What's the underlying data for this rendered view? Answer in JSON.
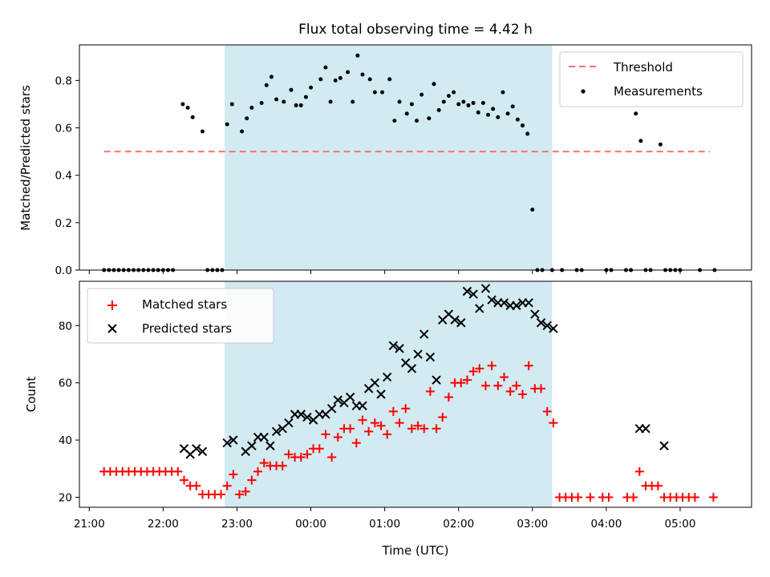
{
  "chart_data": [
    {
      "type": "scatter",
      "title": "Flux total observing time = 4.42 h",
      "xlabel": "",
      "ylabel": "Matched/Predicted stars",
      "ylim": [
        0,
        0.95
      ],
      "xlim": [
        "20:52",
        "05:58"
      ],
      "yticks": [
        0.0,
        0.2,
        0.4,
        0.6,
        0.8
      ],
      "ytick_labels": [
        "0.0",
        "0.2",
        "0.4",
        "0.6",
        "0.8"
      ],
      "grid": false,
      "legend_position": "top-right",
      "shaded_interval": {
        "start": "22:50",
        "end": "03:16",
        "color": "#add8e6"
      },
      "threshold": {
        "name": "Threshold",
        "value": 0.5,
        "x_start": "21:12",
        "x_end": "05:24",
        "color": "#ff7070",
        "style": "dashed"
      },
      "series": [
        {
          "name": "Measurements",
          "marker": "dot",
          "color": "#000000",
          "points": [
            [
              "21:12",
              0.0
            ],
            [
              "21:16",
              0.0
            ],
            [
              "21:20",
              0.0
            ],
            [
              "21:24",
              0.0
            ],
            [
              "21:28",
              0.0
            ],
            [
              "21:32",
              0.0
            ],
            [
              "21:36",
              0.0
            ],
            [
              "21:40",
              0.0
            ],
            [
              "21:44",
              0.0
            ],
            [
              "21:48",
              0.0
            ],
            [
              "21:52",
              0.0
            ],
            [
              "21:56",
              0.0
            ],
            [
              "22:00",
              0.0
            ],
            [
              "22:04",
              0.0
            ],
            [
              "22:08",
              0.0
            ],
            [
              "22:16",
              0.7
            ],
            [
              "22:20",
              0.685
            ],
            [
              "22:24",
              0.645
            ],
            [
              "22:32",
              0.585
            ],
            [
              "22:36",
              0.0
            ],
            [
              "22:40",
              0.0
            ],
            [
              "22:44",
              0.0
            ],
            [
              "22:48",
              0.0
            ],
            [
              "22:52",
              0.615
            ],
            [
              "22:56",
              0.7
            ],
            [
              "23:04",
              0.585
            ],
            [
              "23:08",
              0.64
            ],
            [
              "23:12",
              0.685
            ],
            [
              "23:20",
              0.705
            ],
            [
              "23:24",
              0.78
            ],
            [
              "23:28",
              0.815
            ],
            [
              "23:32",
              0.72
            ],
            [
              "23:38",
              0.71
            ],
            [
              "23:44",
              0.76
            ],
            [
              "23:48",
              0.695
            ],
            [
              "23:52",
              0.695
            ],
            [
              "23:56",
              0.73
            ],
            [
              "00:00",
              0.77
            ],
            [
              "00:08",
              0.805
            ],
            [
              "00:12",
              0.855
            ],
            [
              "00:16",
              0.71
            ],
            [
              "00:20",
              0.8
            ],
            [
              "00:24",
              0.81
            ],
            [
              "00:30",
              0.835
            ],
            [
              "00:34",
              0.71
            ],
            [
              "00:38",
              0.905
            ],
            [
              "00:42",
              0.825
            ],
            [
              "00:48",
              0.805
            ],
            [
              "00:52",
              0.75
            ],
            [
              "00:58",
              0.75
            ],
            [
              "01:04",
              0.805
            ],
            [
              "01:08",
              0.63
            ],
            [
              "01:12",
              0.71
            ],
            [
              "01:18",
              0.66
            ],
            [
              "01:22",
              0.7
            ],
            [
              "01:26",
              0.63
            ],
            [
              "01:30",
              0.74
            ],
            [
              "01:36",
              0.64
            ],
            [
              "01:40",
              0.785
            ],
            [
              "01:44",
              0.675
            ],
            [
              "01:48",
              0.71
            ],
            [
              "01:52",
              0.735
            ],
            [
              "01:56",
              0.75
            ],
            [
              "02:00",
              0.7
            ],
            [
              "02:04",
              0.71
            ],
            [
              "02:08",
              0.695
            ],
            [
              "02:12",
              0.705
            ],
            [
              "02:16",
              0.665
            ],
            [
              "02:20",
              0.705
            ],
            [
              "02:24",
              0.655
            ],
            [
              "02:28",
              0.68
            ],
            [
              "02:32",
              0.645
            ],
            [
              "02:36",
              0.75
            ],
            [
              "02:40",
              0.66
            ],
            [
              "02:44",
              0.69
            ],
            [
              "02:48",
              0.635
            ],
            [
              "02:52",
              0.61
            ],
            [
              "02:56",
              0.575
            ],
            [
              "03:00",
              0.255
            ],
            [
              "03:04",
              0.0
            ],
            [
              "03:08",
              0.0
            ],
            [
              "03:16",
              0.0
            ],
            [
              "03:24",
              0.0
            ],
            [
              "03:36",
              0.0
            ],
            [
              "03:40",
              0.0
            ],
            [
              "04:00",
              0.0
            ],
            [
              "04:04",
              0.0
            ],
            [
              "04:16",
              0.0
            ],
            [
              "04:20",
              0.0
            ],
            [
              "04:24",
              0.66
            ],
            [
              "04:28",
              0.545
            ],
            [
              "04:44",
              0.53
            ],
            [
              "04:32",
              0.0
            ],
            [
              "04:36",
              0.0
            ],
            [
              "04:48",
              0.0
            ],
            [
              "04:52",
              0.0
            ],
            [
              "04:56",
              0.0
            ],
            [
              "05:00",
              0.0
            ],
            [
              "05:16",
              0.0
            ],
            [
              "05:28",
              0.0
            ]
          ]
        }
      ]
    },
    {
      "type": "scatter",
      "title": "",
      "xlabel": "Time (UTC)",
      "ylabel": "Count",
      "ylim": [
        16.5,
        95.5
      ],
      "xlim": [
        "20:52",
        "05:58"
      ],
      "yticks": [
        20,
        40,
        60,
        80
      ],
      "ytick_labels": [
        "20",
        "40",
        "60",
        "80"
      ],
      "xticks": [
        "21:00",
        "22:00",
        "23:00",
        "00:00",
        "01:00",
        "02:00",
        "03:00",
        "04:00",
        "05:00"
      ],
      "grid": false,
      "legend_position": "top-left",
      "shaded_interval": {
        "start": "22:50",
        "end": "03:16",
        "color": "#add8e6"
      },
      "series": [
        {
          "name": "Matched stars",
          "marker": "plus",
          "color": "#ff0000",
          "points": [
            [
              "21:12",
              29
            ],
            [
              "21:17",
              29
            ],
            [
              "21:22",
              29
            ],
            [
              "21:27",
              29
            ],
            [
              "21:32",
              29
            ],
            [
              "21:37",
              29
            ],
            [
              "21:42",
              29
            ],
            [
              "21:47",
              29
            ],
            [
              "21:52",
              29
            ],
            [
              "21:57",
              29
            ],
            [
              "22:02",
              29
            ],
            [
              "22:07",
              29
            ],
            [
              "22:12",
              29
            ],
            [
              "22:17",
              26
            ],
            [
              "22:22",
              24
            ],
            [
              "22:27",
              24
            ],
            [
              "22:32",
              21
            ],
            [
              "22:37",
              21
            ],
            [
              "22:42",
              21
            ],
            [
              "22:47",
              21
            ],
            [
              "22:52",
              24
            ],
            [
              "22:57",
              28
            ],
            [
              "23:02",
              21
            ],
            [
              "23:07",
              22
            ],
            [
              "23:12",
              26
            ],
            [
              "23:17",
              29
            ],
            [
              "23:22",
              32
            ],
            [
              "23:27",
              31
            ],
            [
              "23:32",
              31
            ],
            [
              "23:37",
              31
            ],
            [
              "23:42",
              35
            ],
            [
              "23:47",
              34
            ],
            [
              "23:52",
              34
            ],
            [
              "23:57",
              35
            ],
            [
              "00:02",
              37
            ],
            [
              "00:07",
              37
            ],
            [
              "00:12",
              42
            ],
            [
              "00:17",
              34
            ],
            [
              "00:22",
              41
            ],
            [
              "00:27",
              44
            ],
            [
              "00:32",
              44
            ],
            [
              "00:37",
              39
            ],
            [
              "00:42",
              47
            ],
            [
              "00:47",
              43
            ],
            [
              "00:52",
              46
            ],
            [
              "00:57",
              45
            ],
            [
              "01:02",
              42
            ],
            [
              "01:07",
              50
            ],
            [
              "01:12",
              46
            ],
            [
              "01:17",
              51
            ],
            [
              "01:22",
              44
            ],
            [
              "01:27",
              45
            ],
            [
              "01:32",
              44
            ],
            [
              "01:37",
              57
            ],
            [
              "01:42",
              44
            ],
            [
              "01:47",
              48
            ],
            [
              "01:52",
              55
            ],
            [
              "01:57",
              60
            ],
            [
              "02:02",
              60
            ],
            [
              "02:07",
              61
            ],
            [
              "02:12",
              64
            ],
            [
              "02:17",
              65
            ],
            [
              "02:22",
              59
            ],
            [
              "02:27",
              66
            ],
            [
              "02:32",
              59
            ],
            [
              "02:37",
              62
            ],
            [
              "02:42",
              57
            ],
            [
              "02:47",
              59
            ],
            [
              "02:52",
              56
            ],
            [
              "02:57",
              66
            ],
            [
              "03:02",
              58
            ],
            [
              "03:07",
              58
            ],
            [
              "03:12",
              50
            ],
            [
              "03:17",
              46
            ],
            [
              "03:22",
              20
            ],
            [
              "03:27",
              20
            ],
            [
              "03:32",
              20
            ],
            [
              "03:37",
              20
            ],
            [
              "03:47",
              20
            ],
            [
              "03:57",
              20
            ],
            [
              "04:02",
              20
            ],
            [
              "04:17",
              20
            ],
            [
              "04:22",
              20
            ],
            [
              "04:27",
              29
            ],
            [
              "04:32",
              24
            ],
            [
              "04:37",
              24
            ],
            [
              "04:42",
              24
            ],
            [
              "04:47",
              20
            ],
            [
              "04:52",
              20
            ],
            [
              "04:57",
              20
            ],
            [
              "05:02",
              20
            ],
            [
              "05:07",
              20
            ],
            [
              "05:12",
              20
            ],
            [
              "05:27",
              20
            ]
          ]
        },
        {
          "name": "Predicted stars",
          "marker": "x",
          "color": "#000000",
          "points": [
            [
              "22:17",
              37
            ],
            [
              "22:22",
              35
            ],
            [
              "22:27",
              37
            ],
            [
              "22:32",
              36
            ],
            [
              "22:52",
              39
            ],
            [
              "22:57",
              40
            ],
            [
              "23:07",
              36
            ],
            [
              "23:12",
              38
            ],
            [
              "23:17",
              41
            ],
            [
              "23:22",
              41
            ],
            [
              "23:27",
              38
            ],
            [
              "23:32",
              43
            ],
            [
              "23:37",
              44
            ],
            [
              "23:42",
              46
            ],
            [
              "23:47",
              49
            ],
            [
              "23:52",
              49
            ],
            [
              "23:57",
              48
            ],
            [
              "00:02",
              47
            ],
            [
              "00:07",
              49
            ],
            [
              "00:12",
              49
            ],
            [
              "00:17",
              51
            ],
            [
              "00:22",
              54
            ],
            [
              "00:27",
              53
            ],
            [
              "00:32",
              55
            ],
            [
              "00:37",
              52
            ],
            [
              "00:42",
              52
            ],
            [
              "00:47",
              58
            ],
            [
              "00:52",
              60
            ],
            [
              "00:57",
              56
            ],
            [
              "01:02",
              62
            ],
            [
              "01:07",
              73
            ],
            [
              "01:12",
              72
            ],
            [
              "01:17",
              67
            ],
            [
              "01:22",
              65
            ],
            [
              "01:27",
              70
            ],
            [
              "01:32",
              77
            ],
            [
              "01:37",
              69
            ],
            [
              "01:42",
              61
            ],
            [
              "01:47",
              82
            ],
            [
              "01:52",
              84
            ],
            [
              "01:57",
              82
            ],
            [
              "02:02",
              81
            ],
            [
              "02:07",
              92
            ],
            [
              "02:12",
              91
            ],
            [
              "02:17",
              86
            ],
            [
              "02:22",
              93
            ],
            [
              "02:27",
              89
            ],
            [
              "02:32",
              88
            ],
            [
              "02:37",
              88
            ],
            [
              "02:42",
              87
            ],
            [
              "02:47",
              87
            ],
            [
              "02:52",
              88
            ],
            [
              "02:57",
              88
            ],
            [
              "03:02",
              84
            ],
            [
              "03:07",
              81
            ],
            [
              "03:12",
              80
            ],
            [
              "03:17",
              79
            ],
            [
              "04:27",
              44
            ],
            [
              "04:32",
              44
            ],
            [
              "04:47",
              38
            ]
          ]
        }
      ]
    }
  ],
  "colors": {
    "band": "#add8e6",
    "threshold": "#ff7070",
    "matched": "#ff0000",
    "predicted": "#000000"
  }
}
